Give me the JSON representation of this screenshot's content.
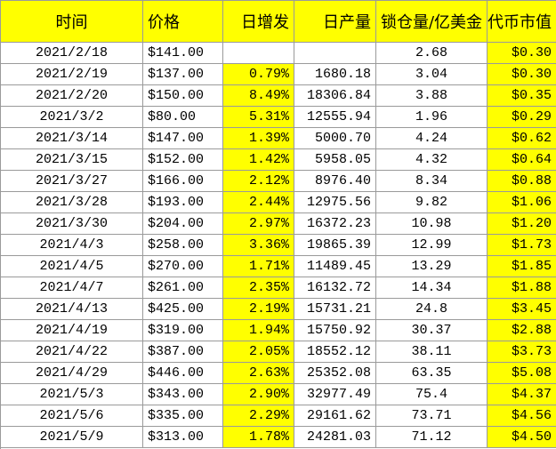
{
  "table": {
    "headers": [
      "时间",
      "价格",
      "日增发",
      "日产量",
      "锁仓量/亿美金",
      "代币市值"
    ],
    "rows": [
      [
        "2021/2/18",
        "$141.00",
        null,
        null,
        "2.68",
        "$0.30"
      ],
      [
        "2021/2/19",
        "$137.00",
        "0.79%",
        "1680.18",
        "3.04",
        "$0.30"
      ],
      [
        "2021/2/20",
        "$150.00",
        "8.49%",
        "18306.84",
        "3.88",
        "$0.35"
      ],
      [
        "2021/3/2",
        "$80.00",
        "5.31%",
        "12555.94",
        "1.96",
        "$0.29"
      ],
      [
        "2021/3/14",
        "$147.00",
        "1.39%",
        "5000.70",
        "4.24",
        "$0.62"
      ],
      [
        "2021/3/15",
        "$152.00",
        "1.42%",
        "5958.05",
        "4.32",
        "$0.64"
      ],
      [
        "2021/3/27",
        "$166.00",
        "2.12%",
        "8976.40",
        "8.34",
        "$0.88"
      ],
      [
        "2021/3/28",
        "$193.00",
        "2.44%",
        "12975.56",
        "9.82",
        "$1.06"
      ],
      [
        "2021/3/30",
        "$204.00",
        "2.97%",
        "16372.23",
        "10.98",
        "$1.20"
      ],
      [
        "2021/4/3",
        "$258.00",
        "3.36%",
        "19865.39",
        "12.99",
        "$1.73"
      ],
      [
        "2021/4/5",
        "$270.00",
        "1.71%",
        "11489.45",
        "13.29",
        "$1.85"
      ],
      [
        "2021/4/7",
        "$261.00",
        "2.35%",
        "16132.72",
        "14.34",
        "$1.88"
      ],
      [
        "2021/4/13",
        "$425.00",
        "2.19%",
        "15731.21",
        "24.8",
        "$3.45"
      ],
      [
        "2021/4/19",
        "$319.00",
        "1.94%",
        "15750.92",
        "30.37",
        "$2.88"
      ],
      [
        "2021/4/22",
        "$387.00",
        "2.05%",
        "18552.12",
        "38.11",
        "$3.73"
      ],
      [
        "2021/4/29",
        "$446.00",
        "2.63%",
        "25352.08",
        "63.35",
        "$5.08"
      ],
      [
        "2021/5/3",
        "$343.00",
        "2.90%",
        "32977.49",
        "75.4",
        "$4.37"
      ],
      [
        "2021/5/6",
        "$335.00",
        "2.29%",
        "29161.62",
        "73.71",
        "$4.56"
      ],
      [
        "2021/5/9",
        "$313.00",
        "1.78%",
        "24281.03",
        "71.12",
        "$4.50"
      ]
    ]
  }
}
